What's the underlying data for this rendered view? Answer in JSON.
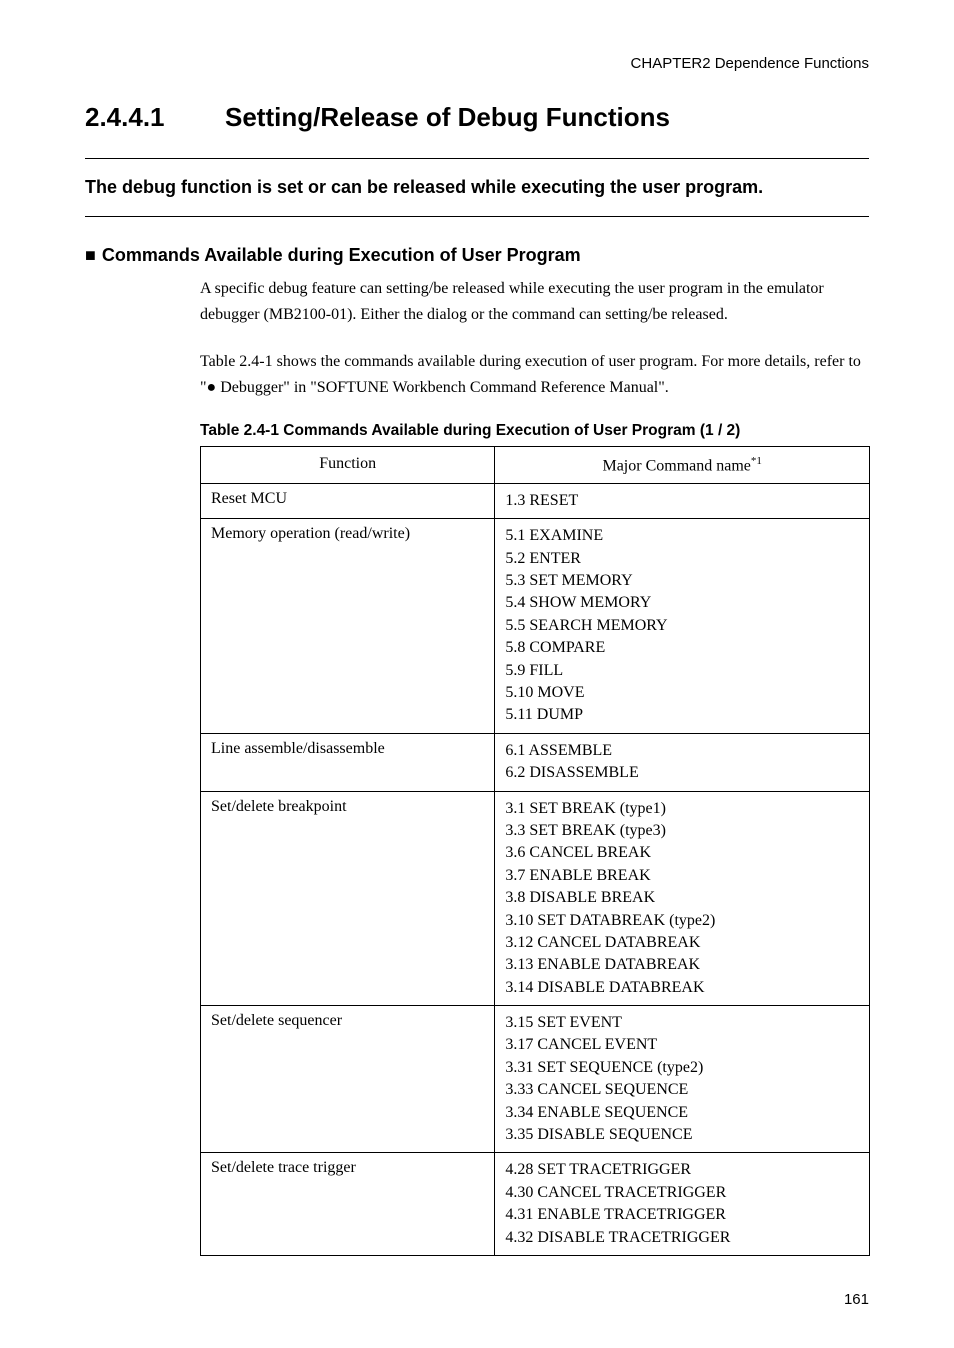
{
  "header": {
    "running_title": "CHAPTER2  Dependence Functions"
  },
  "section": {
    "number": "2.4.4.1",
    "title": "Setting/Release of Debug Functions",
    "intro": "The debug function is set or can be released while executing the user program."
  },
  "subsection": {
    "bullet": "■",
    "title": "Commands Available during Execution of User Program",
    "para1": "A specific debug feature can setting/be released while executing the user program in the emulator debugger (MB2100-01). Either the dialog or the command can setting/be released.",
    "para2": "Table 2.4-1 shows the commands available during execution of user program. For more details, refer to \"● Debugger\" in \"SOFTUNE Workbench Command Reference Manual\"."
  },
  "table": {
    "caption": "Table 2.4-1  Commands Available during Execution of User Program (1 / 2)",
    "columns": {
      "func": "Function",
      "cmd": "Major Command name",
      "cmd_sup": "*1"
    },
    "rows": [
      {
        "function": "Reset MCU",
        "commands": [
          "1.3 RESET"
        ]
      },
      {
        "function": "Memory operation (read/write)",
        "commands": [
          "5.1 EXAMINE",
          "5.2 ENTER",
          "5.3 SET MEMORY",
          "5.4 SHOW MEMORY",
          "5.5 SEARCH MEMORY",
          "5.8 COMPARE",
          "5.9 FILL",
          "5.10 MOVE",
          "5.11 DUMP"
        ]
      },
      {
        "function": "Line assemble/disassemble",
        "commands": [
          "6.1 ASSEMBLE",
          "6.2 DISASSEMBLE"
        ]
      },
      {
        "function": "Set/delete breakpoint",
        "commands": [
          "3.1 SET BREAK (type1)",
          "3.3 SET BREAK (type3)",
          "3.6 CANCEL BREAK",
          "3.7 ENABLE BREAK",
          "3.8 DISABLE BREAK",
          "3.10 SET DATABREAK (type2)",
          "3.12 CANCEL DATABREAK",
          "3.13 ENABLE DATABREAK",
          "3.14 DISABLE DATABREAK"
        ]
      },
      {
        "function": "Set/delete sequencer",
        "commands": [
          "3.15 SET EVENT",
          "3.17 CANCEL EVENT",
          "3.31 SET SEQUENCE (type2)",
          "3.33 CANCEL SEQUENCE",
          "3.34 ENABLE SEQUENCE",
          "3.35 DISABLE SEQUENCE"
        ]
      },
      {
        "function": "Set/delete trace trigger",
        "commands": [
          "4.28 SET TRACETRIGGER",
          "4.30 CANCEL TRACETRIGGER",
          "4.31 ENABLE TRACETRIGGER",
          "4.32 DISABLE TRACETRIGGER"
        ]
      }
    ]
  },
  "footer": {
    "page_number": "161"
  }
}
